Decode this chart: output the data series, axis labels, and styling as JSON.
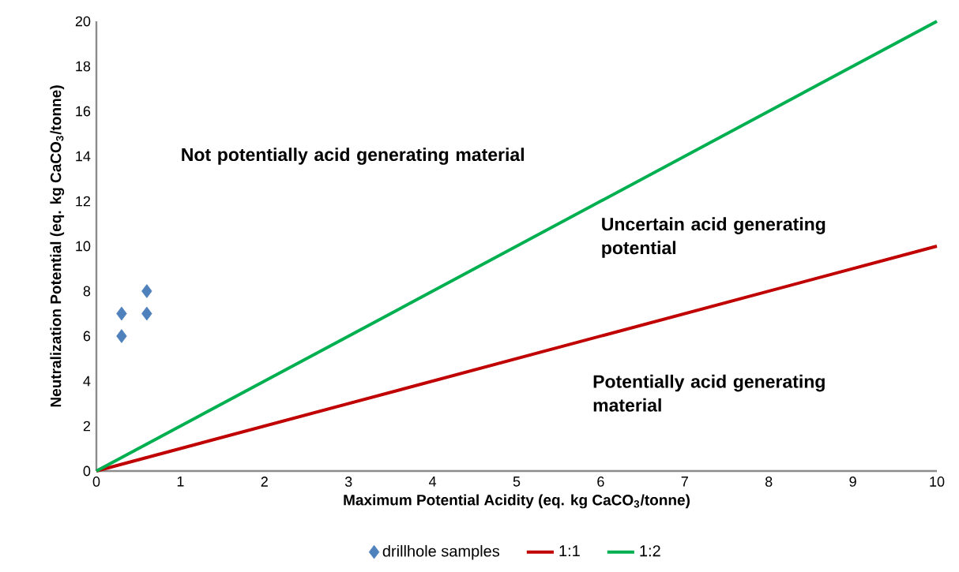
{
  "chart_data": {
    "type": "scatter",
    "xlabel": "Maximum Potential Acidity (eq. kg CaCO$_{3}$/tonne)",
    "ylabel": "Neutralization Potential (eq. kg CaCO$_{3}$/tonne)",
    "xlim": [
      0,
      10
    ],
    "ylim": [
      0,
      20
    ],
    "xticks": [
      0,
      1,
      2,
      3,
      4,
      5,
      6,
      7,
      8,
      9,
      10
    ],
    "yticks": [
      0,
      2,
      4,
      6,
      8,
      10,
      12,
      14,
      16,
      18,
      20
    ],
    "legend": "bottom",
    "grid": false,
    "series": [
      {
        "name": "drillhole samples",
        "marker": "diamond",
        "color": "#4f81bd",
        "x": [
          0.3,
          0.3,
          0.6,
          0.6
        ],
        "values": [
          7,
          6,
          8,
          7
        ]
      },
      {
        "name": "1:1",
        "type": "line",
        "marker": "none",
        "line_style": "solid",
        "color": "#c00000",
        "x": [
          0,
          10
        ],
        "values": [
          0,
          10
        ]
      },
      {
        "name": "1:2",
        "type": "line",
        "marker": "none",
        "line_style": "solid",
        "color": "#00b050",
        "x": [
          0,
          10
        ],
        "values": [
          0,
          20
        ]
      }
    ],
    "annotations": [
      "Not potentially acid generating material",
      "Uncertain acid generating potential",
      "Potentially acid generating material"
    ]
  }
}
